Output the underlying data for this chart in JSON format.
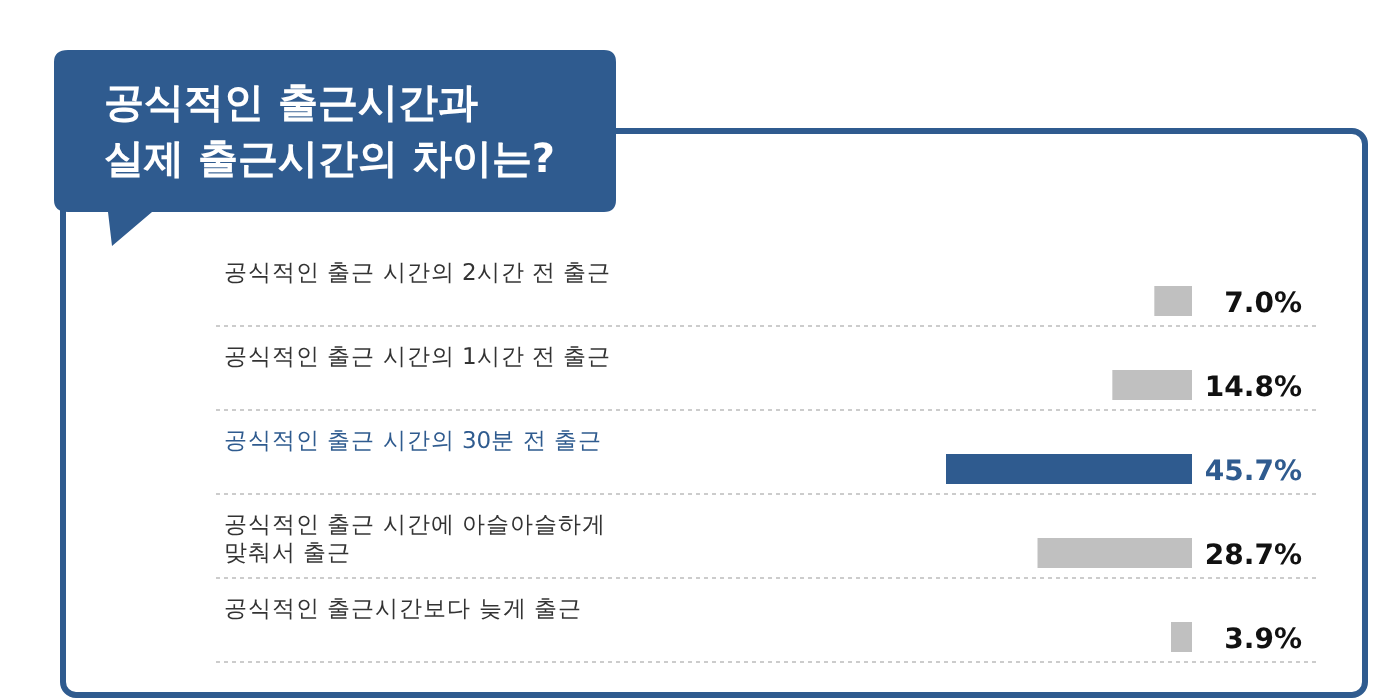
{
  "chart_data": {
    "type": "bar",
    "orientation": "horizontal",
    "title": "공식적인 출근시간과 실제 출근시간의 차이는?",
    "categories": [
      "공식적인 출근 시간의 2시간 전 출근",
      "공식적인 출근 시간의 1시간 전 출근",
      "공식적인 출근 시간의 30분 전 출근",
      "공식적인 출근 시간에 아슬아슬하게 맞춰서 출근",
      "공식적인 출근시간보다 늦게 출근"
    ],
    "values": [
      7.0,
      14.8,
      45.7,
      28.7,
      3.9
    ],
    "value_labels": [
      "7.0%",
      "14.8%",
      "45.7%",
      "28.7%",
      "3.9%"
    ],
    "colors": [
      "#c0c0c0",
      "#c0c0c0",
      "#2f5b8f",
      "#c0c0c0",
      "#c0c0c0"
    ]
  }
}
